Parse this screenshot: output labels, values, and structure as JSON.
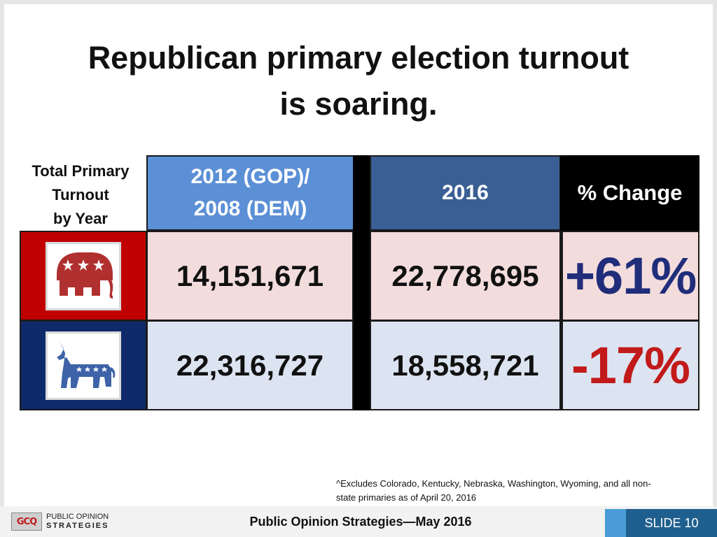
{
  "slide": {
    "title_line1": "Republican primary election turnout",
    "title_line2": "is soaring.",
    "row_label": [
      "Total Primary",
      "Turnout",
      "by Year"
    ]
  },
  "table": {
    "headers": {
      "col1_line1": "2012 (GOP)/",
      "col1_line2": "2008 (DEM)",
      "col2": "2016",
      "col3": "% Change"
    },
    "rows": [
      {
        "party": "republican",
        "icon": "elephant-icon",
        "value_prev": "14,151,671",
        "value_2016": "22,778,695",
        "pct_change": "+61%"
      },
      {
        "party": "democrat",
        "icon": "donkey-icon",
        "value_prev": "22,316,727",
        "value_2016": "18,558,721",
        "pct_change": "-17%"
      }
    ]
  },
  "footnote": {
    "line1": "^Excludes Colorado, Kentucky, Nebraska, Washington, Wyoming, and all non-",
    "line2": "state primaries as of April 20, 2016"
  },
  "footer": {
    "logo_mark": "GCQ",
    "logo_line1": "PUBLIC OPINION",
    "logo_line2": "STRATEGIES",
    "center_text": "Public Opinion Strategies—May 2016",
    "slide_number": "SLIDE 10"
  },
  "colors": {
    "gop_red": "#c00000",
    "dem_blue": "#0f2a6b",
    "increase": "#1f2d7a",
    "decrease": "#c21a1a",
    "header_2012": "#5b8fd6",
    "header_2016": "#3a5f94"
  }
}
